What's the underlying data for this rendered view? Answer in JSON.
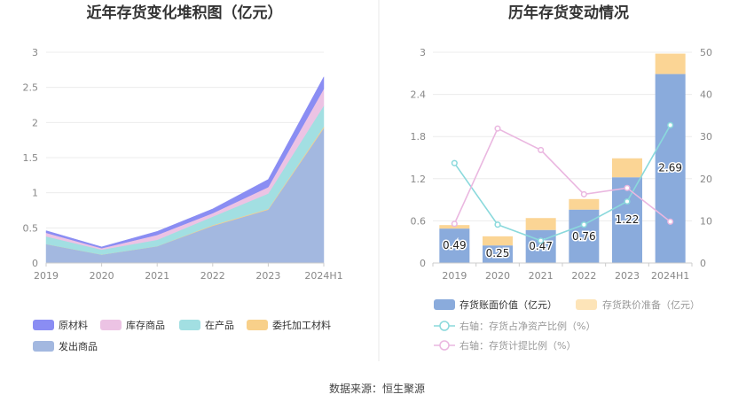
{
  "source": "数据来源：恒生聚源",
  "chart_data": [
    {
      "type": "area",
      "title": "近年存货变化堆积图（亿元）",
      "categories": [
        "2019",
        "2020",
        "2021",
        "2022",
        "2023",
        "2024H1"
      ],
      "y_ticks": [
        "0",
        "0.5",
        "1",
        "1.5",
        "2",
        "2.5",
        "3"
      ],
      "ylim": [
        0,
        3
      ],
      "stacked": true,
      "legend_position": "bottom",
      "series": [
        {
          "name": "发出商品",
          "color": "#a3b8e0",
          "values": [
            0.27,
            0.12,
            0.24,
            0.53,
            0.76,
            1.92
          ]
        },
        {
          "name": "委托加工材料",
          "color": "#f8d08a",
          "values": [
            0.0,
            0.0,
            0.0,
            0.01,
            0.01,
            0.02
          ]
        },
        {
          "name": "在产品",
          "color": "#a2dfe2",
          "values": [
            0.11,
            0.07,
            0.09,
            0.12,
            0.22,
            0.3
          ]
        },
        {
          "name": "库存商品",
          "color": "#ecc3e4",
          "values": [
            0.05,
            0.02,
            0.07,
            0.05,
            0.09,
            0.24
          ]
        },
        {
          "name": "原材料",
          "color": "#8a8df3",
          "values": [
            0.03,
            0.02,
            0.05,
            0.06,
            0.11,
            0.17
          ]
        }
      ],
      "legend_order": [
        "原材料",
        "库存商品",
        "在产品",
        "委托加工材料",
        "发出商品"
      ]
    },
    {
      "type": "bar",
      "title": "历年存货变动情况",
      "categories": [
        "2019",
        "2020",
        "2021",
        "2022",
        "2023",
        "2024H1"
      ],
      "y_left_ticks": [
        "0",
        "0.6",
        "1.2",
        "1.8",
        "2.4",
        "3"
      ],
      "ylim_left": [
        0,
        3
      ],
      "y_right_ticks": [
        "0",
        "10",
        "20",
        "30",
        "40",
        "50"
      ],
      "ylim_right": [
        0,
        50
      ],
      "legend_position": "bottom",
      "bars": [
        {
          "name": "存货账面价值（亿元）",
          "color": "#8aabdc",
          "values": [
            0.49,
            0.25,
            0.47,
            0.76,
            1.22,
            2.69
          ],
          "labels": [
            "0.49",
            "0.25",
            "0.47",
            "0.76",
            "1.22",
            "2.69"
          ]
        },
        {
          "name": "存货跌价准备（亿元）",
          "color": "#fbd595",
          "values": [
            0.05,
            0.13,
            0.17,
            0.15,
            0.27,
            0.29
          ]
        }
      ],
      "lines": [
        {
          "name": "右轴：存货占净资产比例（%）",
          "color": "#8ad9dc",
          "values": [
            23.7,
            9.1,
            5.3,
            9.1,
            14.6,
            32.7
          ]
        },
        {
          "name": "右轴：存货计提比例（%）",
          "color": "#eab7e0",
          "values": [
            9.3,
            31.9,
            26.8,
            16.3,
            17.8,
            9.8
          ]
        }
      ]
    }
  ]
}
